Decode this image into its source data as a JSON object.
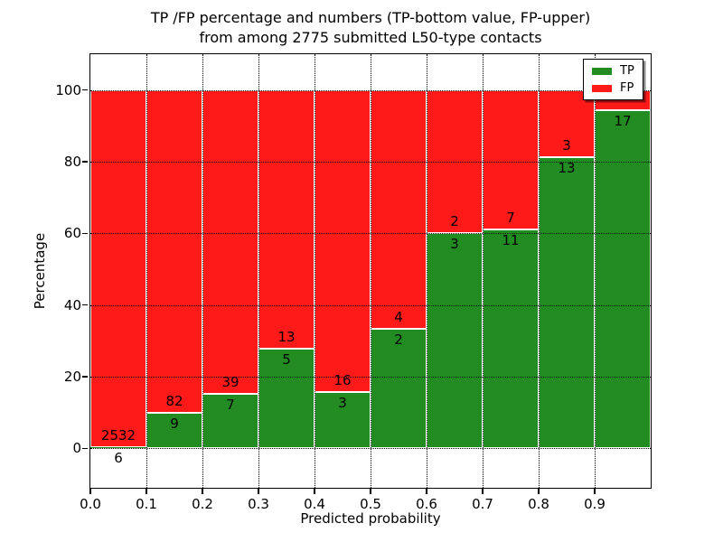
{
  "title": {
    "line1": "TP /FP percentage and numbers (TP-bottom value, FP-upper)",
    "line2": "from among 2775 submitted L50-type contacts"
  },
  "axes": {
    "x_label": "Predicted probability",
    "y_label": "Percentage",
    "x_tick_labels": [
      "0.0",
      "0.1",
      "0.2",
      "0.3",
      "0.4",
      "0.5",
      "0.6",
      "0.7",
      "0.8",
      "0.9"
    ],
    "y_tick_labels": [
      "0",
      "20",
      "40",
      "60",
      "80",
      "100"
    ],
    "y_tick_values": [
      0,
      20,
      40,
      60,
      80,
      100
    ]
  },
  "legend": {
    "items": [
      {
        "label": "TP",
        "color": "#228b22"
      },
      {
        "label": "FP",
        "color": "#ff1a1a"
      }
    ]
  },
  "chart_data": {
    "type": "bar",
    "stacked": true,
    "units": "percent",
    "title": "TP /FP percentage and numbers (TP-bottom value, FP-upper) from among 2775 submitted L50-type contacts",
    "xlabel": "Predicted probability",
    "ylabel": "Percentage",
    "total_contacts_in_title": 2775,
    "grid": "dotted",
    "legend_position": "upper right",
    "xlim": [
      0.0,
      1.0
    ],
    "ylim": [
      -11,
      110
    ],
    "bin_width": 0.1,
    "categories": [
      "0.0-0.1",
      "0.1-0.2",
      "0.2-0.3",
      "0.3-0.4",
      "0.4-0.5",
      "0.5-0.6",
      "0.6-0.7",
      "0.7-0.8",
      "0.8-0.9",
      "0.9-1.0"
    ],
    "series": [
      {
        "name": "TP",
        "color": "#228b22",
        "counts": [
          6,
          9,
          7,
          5,
          3,
          2,
          3,
          11,
          13,
          17
        ],
        "count_labels": [
          "6",
          "9",
          "7",
          "5",
          "3",
          "2",
          "3",
          "11",
          "13",
          "17"
        ],
        "percent": [
          0.24,
          9.89,
          15.22,
          27.78,
          15.79,
          33.33,
          60.0,
          61.11,
          81.25,
          94.44
        ]
      },
      {
        "name": "FP",
        "color": "#ff1a1a",
        "count_labels": [
          "2532",
          "82",
          "39",
          "13",
          "16",
          "4",
          "2",
          "7",
          "3",
          ""
        ],
        "percent": [
          99.76,
          90.11,
          84.78,
          72.22,
          84.21,
          66.67,
          40.0,
          38.89,
          18.75,
          5.56
        ]
      }
    ]
  }
}
